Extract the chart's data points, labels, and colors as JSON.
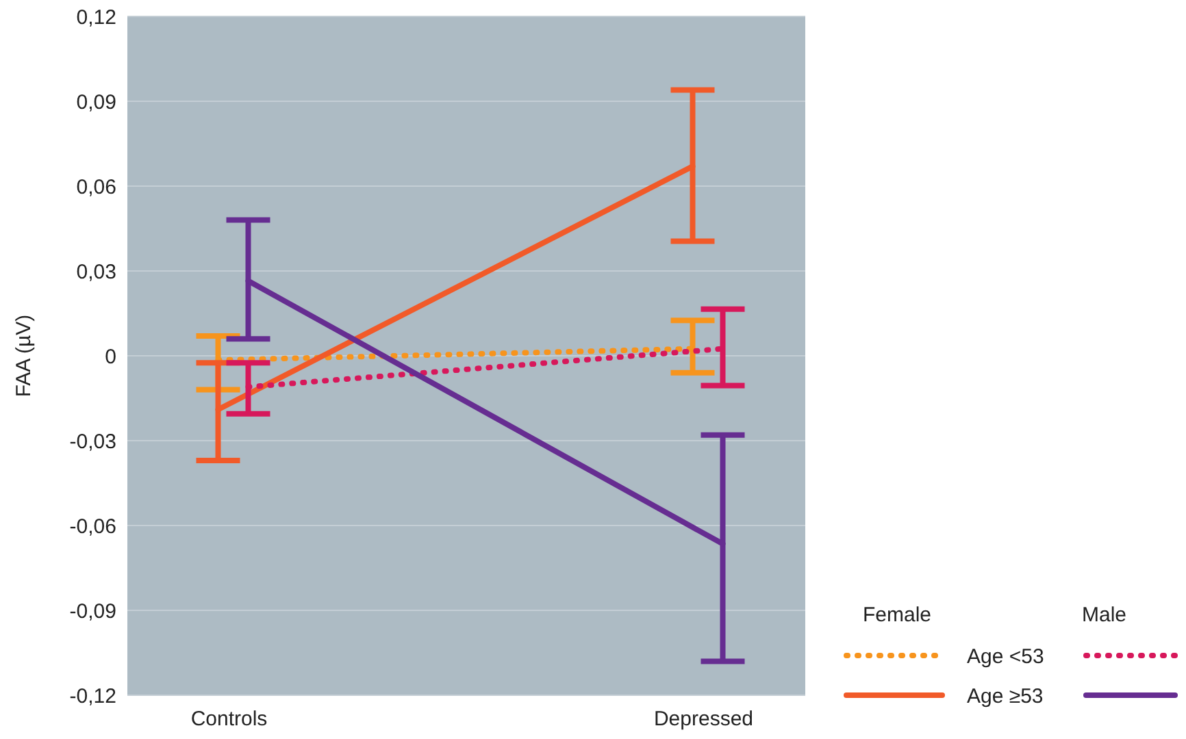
{
  "chart_data": {
    "type": "line",
    "ylabel": "FAA (µV)",
    "categories": [
      "Controls",
      "Depressed"
    ],
    "ylim": [
      -0.12,
      0.12
    ],
    "yticks": [
      {
        "value": 0.12,
        "label": "0,12"
      },
      {
        "value": 0.09,
        "label": "0,09"
      },
      {
        "value": 0.06,
        "label": "0,06"
      },
      {
        "value": 0.03,
        "label": "0,03"
      },
      {
        "value": 0,
        "label": "0"
      },
      {
        "value": -0.03,
        "label": "-0,03"
      },
      {
        "value": -0.06,
        "label": "-0,06"
      },
      {
        "value": -0.09,
        "label": "-0,09"
      },
      {
        "value": -0.12,
        "label": "-0,12"
      }
    ],
    "grid": "y",
    "legend": "bottom right",
    "annotations": [
      "Female",
      "Male"
    ],
    "series": [
      {
        "name": "Age <53",
        "color": "#f7941d",
        "line_style": "dotted",
        "values": [
          -0.0015,
          0.0025
        ],
        "errors": [
          [
            -0.012,
            0.007
          ],
          [
            -0.006,
            0.0125
          ]
        ]
      },
      {
        "name": "Age ≥53",
        "color": "#f15a29",
        "line_style": "solid",
        "values": [
          -0.019,
          0.067
        ],
        "errors": [
          [
            -0.037,
            -0.0025
          ],
          [
            0.0405,
            0.094
          ]
        ]
      },
      {
        "color": "#d7185b",
        "line_style": "dotted",
        "values": [
          -0.011,
          0.0025
        ],
        "errors": [
          [
            -0.0205,
            -0.0025
          ],
          [
            -0.0105,
            0.0165
          ]
        ]
      },
      {
        "color": "#662d91",
        "line_style": "solid",
        "values": [
          0.0265,
          -0.0665
        ],
        "errors": [
          [
            0.006,
            0.048
          ],
          [
            -0.108,
            -0.028
          ]
        ]
      }
    ]
  }
}
